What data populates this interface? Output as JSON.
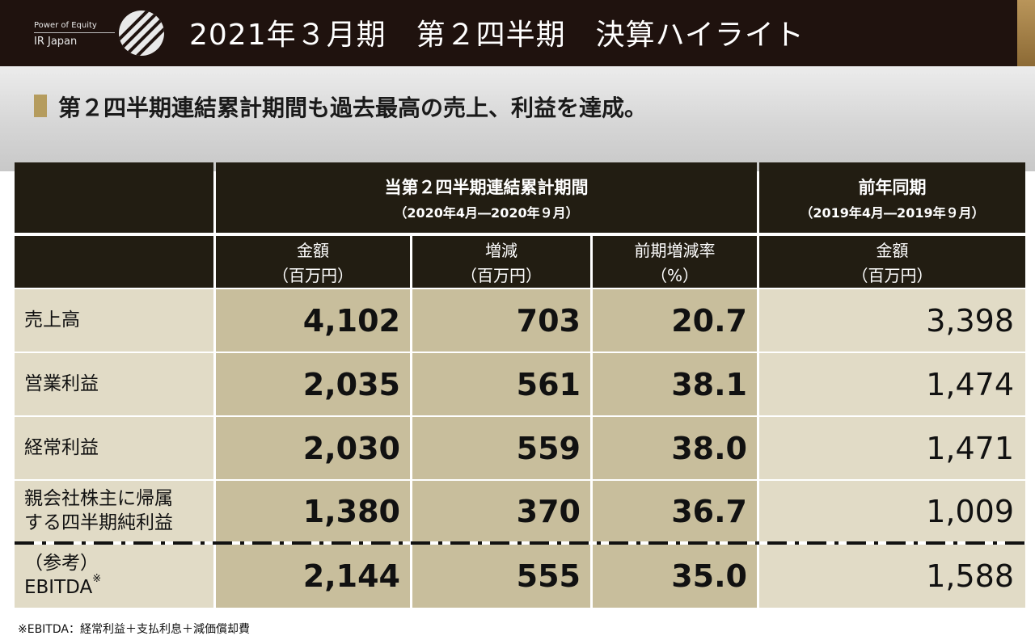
{
  "header": {
    "logo_tagline": "Power of Equity",
    "logo_name": "IR Japan",
    "title": "2021年３月期　第２四半期　決算ハイライト"
  },
  "subtitle": "第２四半期連結累計期間も過去最高の売上、利益を達成。",
  "table": {
    "group_current": {
      "title": "当第２四半期連結累計期間",
      "period": "（2020年4月―2020年９月）"
    },
    "group_prior": {
      "title": "前年同期",
      "period": "（2019年4月―2019年９月）"
    },
    "columns": [
      {
        "label": "金額",
        "unit": "（百万円）"
      },
      {
        "label": "増減",
        "unit": "（百万円）"
      },
      {
        "label": "前期増減率",
        "unit": "（%）"
      },
      {
        "label": "金額",
        "unit": "（百万円）"
      }
    ],
    "rows": [
      {
        "label_line1": "売上高",
        "label_line2": "",
        "amount": "4,102",
        "change": "703",
        "rate": "20.7",
        "prior": "3,398"
      },
      {
        "label_line1": "営業利益",
        "label_line2": "",
        "amount": "2,035",
        "change": "561",
        "rate": "38.1",
        "prior": "1,474"
      },
      {
        "label_line1": "経常利益",
        "label_line2": "",
        "amount": "2,030",
        "change": "559",
        "rate": "38.0",
        "prior": "1,471"
      },
      {
        "label_line1": "親会社株主に帰属",
        "label_line2": "する四半期純利益",
        "amount": "1,380",
        "change": "370",
        "rate": "36.7",
        "prior": "1,009"
      },
      {
        "label_line1": "（参考）",
        "label_line2": "EBITDA",
        "note_mark": "※",
        "amount": "2,144",
        "change": "555",
        "rate": "35.0",
        "prior": "1,588"
      }
    ]
  },
  "footnote": "※EBITDA：経常利益＋支払利息＋減価償却費"
}
